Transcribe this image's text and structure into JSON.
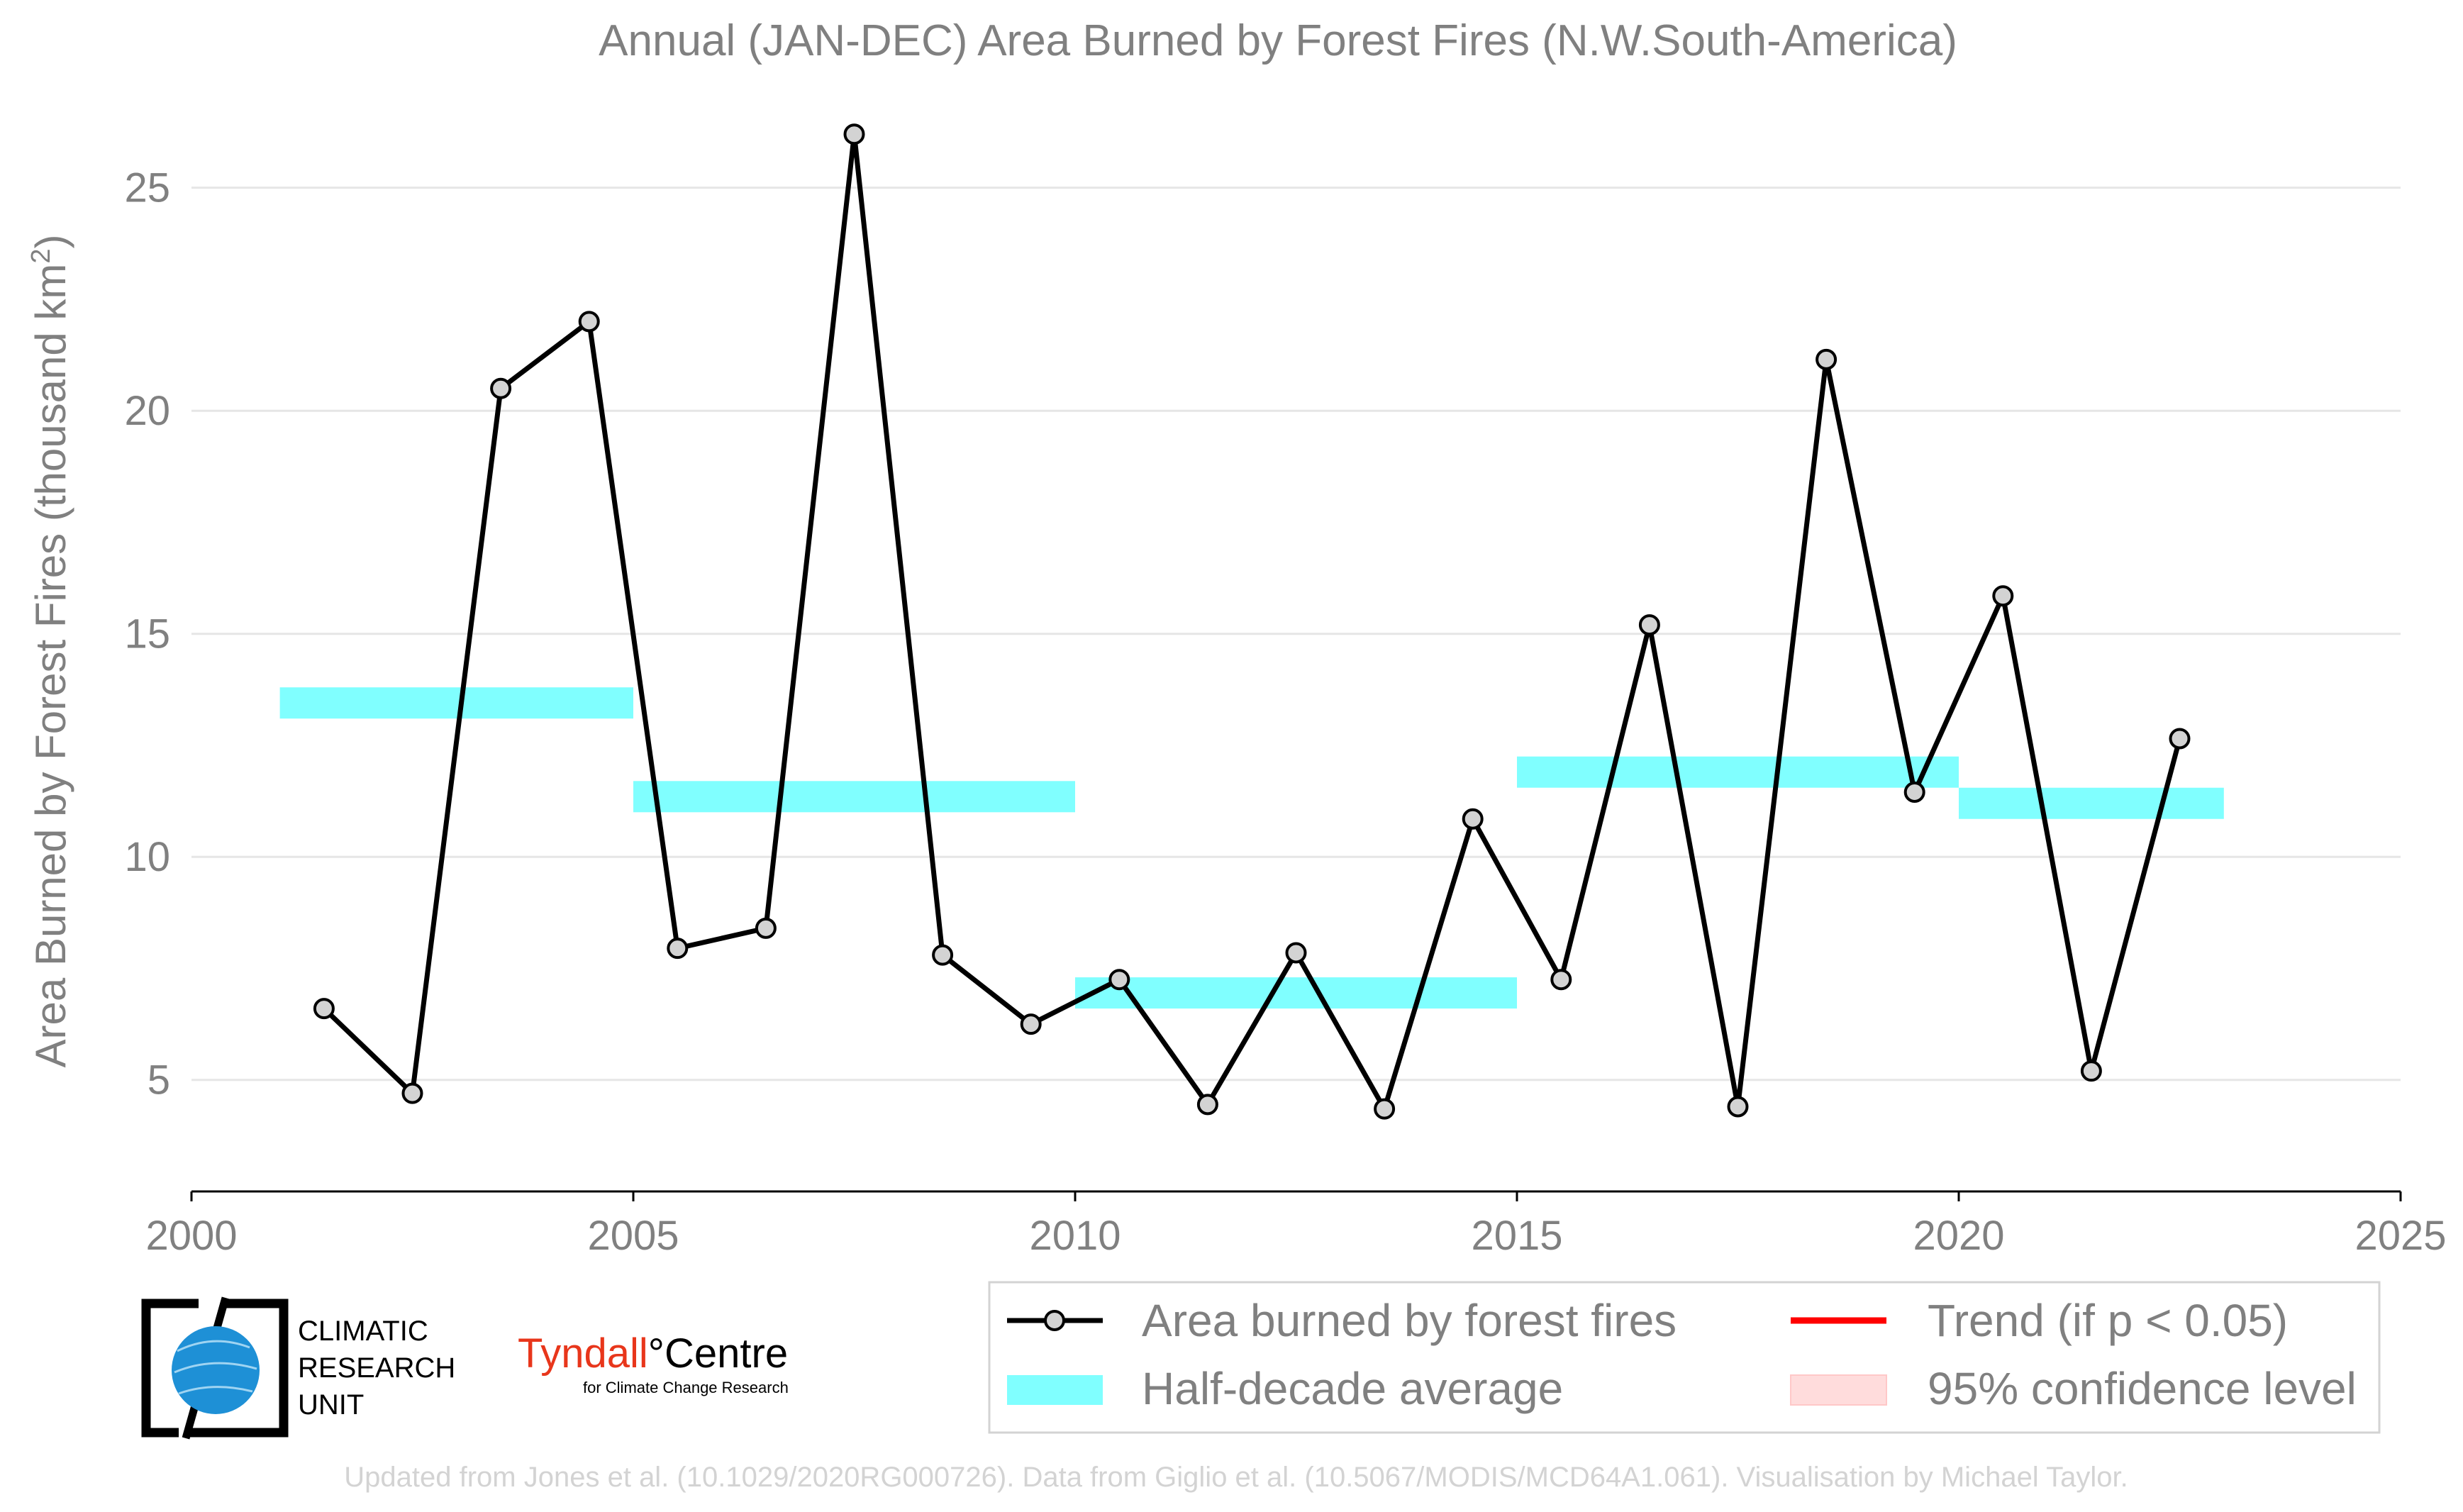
{
  "chart_data": {
    "type": "line",
    "title": "Annual (JAN-DEC) Area Burned by Forest Fires (N.W.South-America)",
    "ylabel": "Area Burned by Forest Fires (thousand km",
    "ylabel_sup": "2",
    "ylabel_close": ")",
    "xlim": [
      2000,
      2025
    ],
    "ylim": [
      2.5,
      27.3
    ],
    "xticks": [
      2000,
      2005,
      2010,
      2015,
      2020,
      2025
    ],
    "yticks": [
      5,
      10,
      15,
      20,
      25
    ],
    "grid": "horizontal",
    "series": [
      {
        "name": "Area burned by forest fires",
        "color": "#000000",
        "marker_fill": "#d3d3d3",
        "x": [
          2001.5,
          2002.5,
          2003.5,
          2004.5,
          2005.5,
          2006.5,
          2007.5,
          2008.5,
          2009.5,
          2010.5,
          2011.5,
          2012.5,
          2013.5,
          2014.5,
          2015.5,
          2016.5,
          2017.5,
          2018.5,
          2019.5,
          2020.5,
          2021.5,
          2022.5
        ],
        "values": [
          6.6,
          4.7,
          20.5,
          22.0,
          7.95,
          8.4,
          26.2,
          7.8,
          6.25,
          7.25,
          4.45,
          7.85,
          4.35,
          10.85,
          7.25,
          15.2,
          4.4,
          21.15,
          11.45,
          15.85,
          5.2,
          12.65
        ]
      },
      {
        "name": "Half-decade average",
        "color": "#80ffff",
        "segments": [
          {
            "x0": 2001,
            "x1": 2005,
            "value": 13.45
          },
          {
            "x0": 2005,
            "x1": 2010,
            "value": 11.35
          },
          {
            "x0": 2010,
            "x1": 2015,
            "value": 6.95
          },
          {
            "x0": 2015,
            "x1": 2020,
            "value": 11.9
          },
          {
            "x0": 2020,
            "x1": 2023,
            "value": 11.2
          }
        ]
      }
    ],
    "legend": {
      "placement": "bottom-right",
      "items": [
        {
          "label": "Area burned by forest fires",
          "kind": "line-marker",
          "color": "#000000"
        },
        {
          "label": "Half-decade average",
          "kind": "band",
          "color": "#80ffff"
        },
        {
          "label": "Trend (if p < 0.05)",
          "kind": "line",
          "color": "#ff0000"
        },
        {
          "label": "95% confidence level",
          "kind": "band",
          "color": "#ffdcdc"
        }
      ]
    }
  },
  "logos": {
    "cru": [
      "CLIMATIC",
      "RESEARCH",
      "UNIT"
    ],
    "tyndall_main": "Tyndall",
    "tyndall_degree": "°",
    "tyndall_centre": "Centre",
    "tyndall_sub": "for Climate Change Research"
  },
  "credit": "Updated from Jones et al. (10.1029/2020RG000726). Data from Giglio et al. (10.5067/MODIS/MCD64A1.061). Visualisation by Michael Taylor."
}
